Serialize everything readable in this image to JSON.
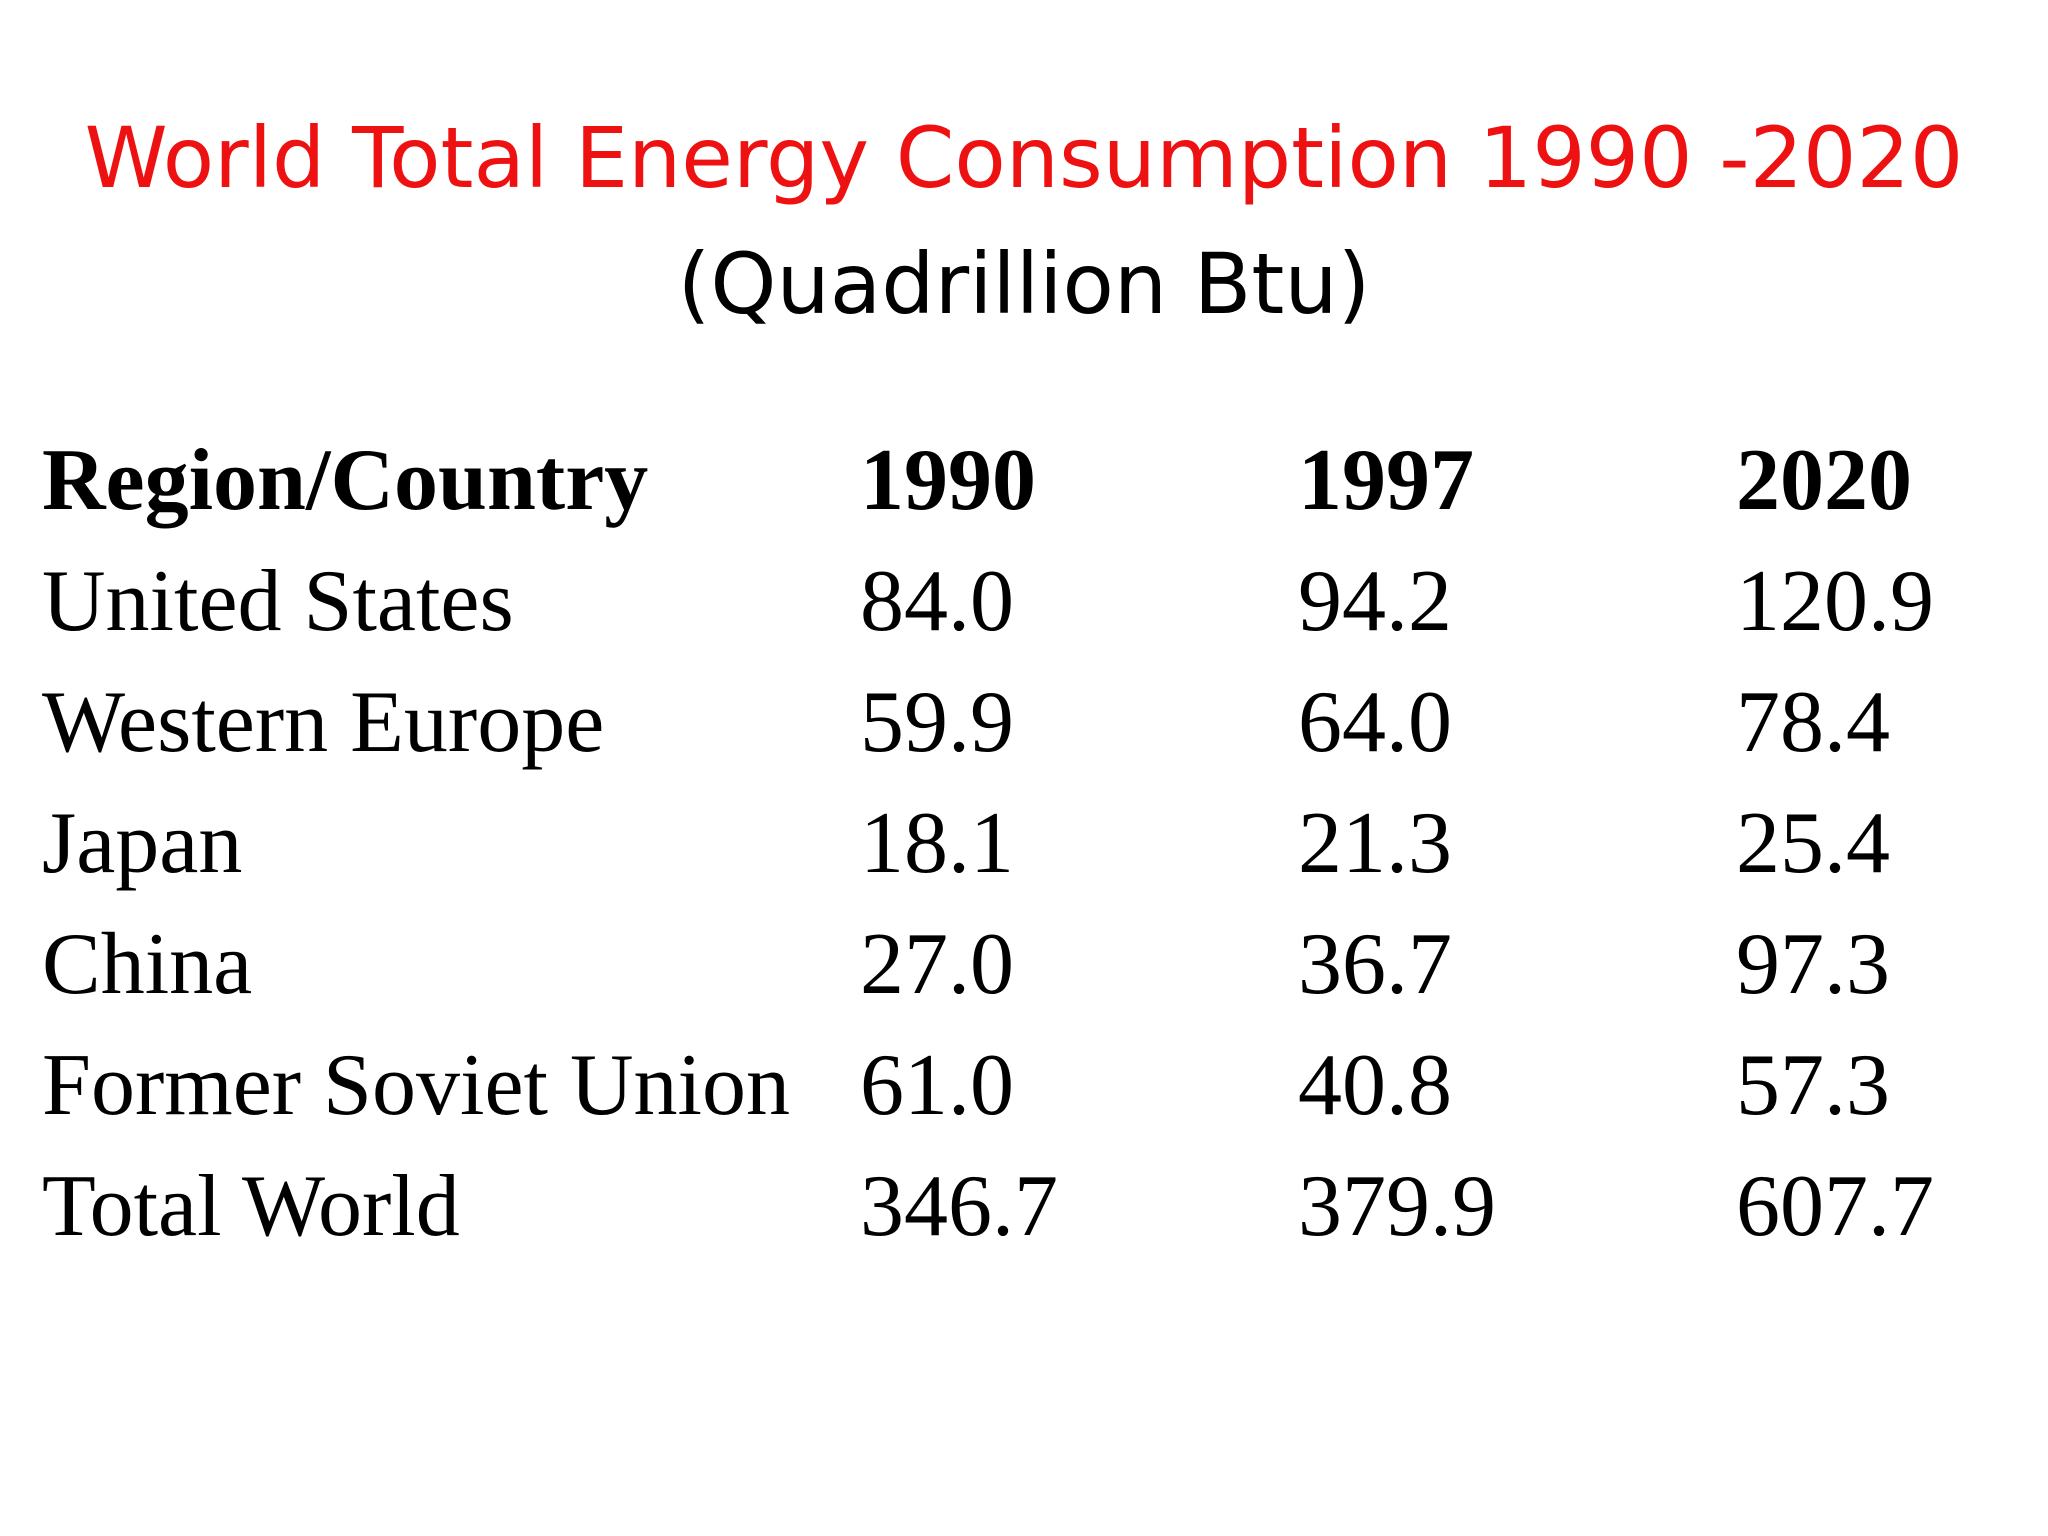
{
  "title": "World Total Energy Consumption 1990 -2020",
  "subtitle": "(Quadrillion Btu)",
  "colors": {
    "title": "#ee1111",
    "text": "#000000",
    "background": "#ffffff"
  },
  "table": {
    "headers": [
      "Region/Country",
      "1990",
      "1997",
      "2020"
    ],
    "rows": [
      [
        "United States",
        "84.0",
        "94.2",
        "120.9"
      ],
      [
        "Western Europe",
        "59.9",
        "64.0",
        "78.4"
      ],
      [
        "Japan",
        "18.1",
        "21.3",
        "25.4"
      ],
      [
        "China",
        "27.0",
        "36.7",
        "97.3"
      ],
      [
        "Former Soviet Union",
        "61.0",
        "40.8",
        "57.3"
      ],
      [
        "Total World",
        "346.7",
        "379.9",
        "607.7"
      ]
    ]
  }
}
